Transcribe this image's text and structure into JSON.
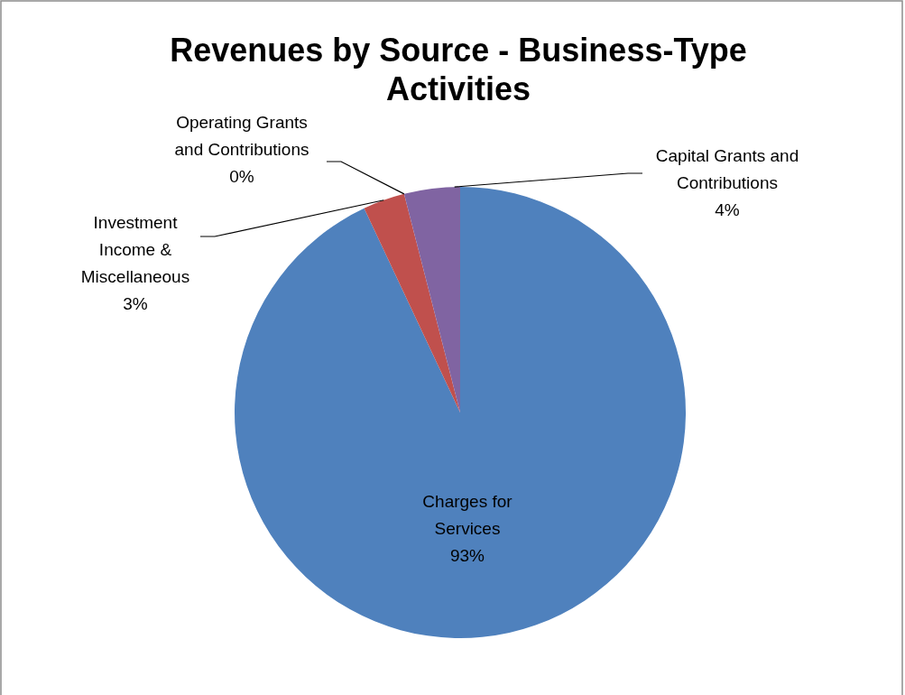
{
  "chart_data": {
    "type": "pie",
    "title": "Revenues by Source - Business-Type Activities",
    "categories": [
      "Charges for Services",
      "Investment Income & Miscellaneous",
      "Operating Grants and Contributions",
      "Capital Grants and Contributions"
    ],
    "values": [
      93,
      3,
      0,
      4
    ],
    "value_labels": [
      "93%",
      "3%",
      "0%",
      "4%"
    ],
    "colors": [
      "#4f81bd",
      "#c0504d",
      "#9bbb59",
      "#8064a2"
    ],
    "legend": false
  }
}
